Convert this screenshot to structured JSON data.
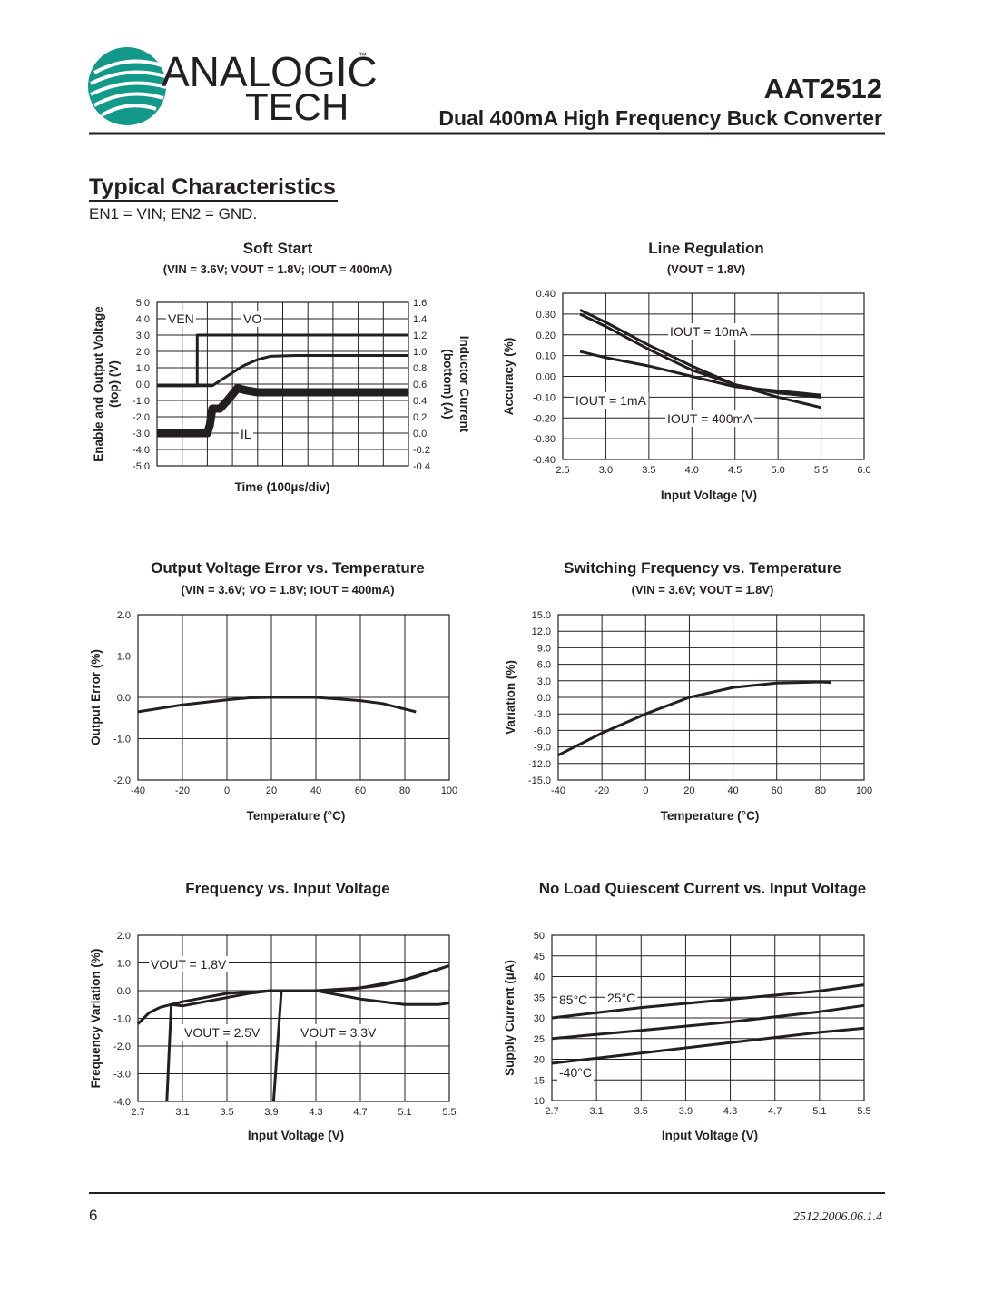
{
  "header": {
    "logo_top": "ANALOGIC",
    "logo_bottom": "TECH",
    "trademark": "™",
    "part": "AAT2512",
    "product": "Dual 400mA High Frequency Buck Converter"
  },
  "section": {
    "title": "Typical Characteristics",
    "condition": "EN1 = VIN; EN2 = GND."
  },
  "footer": {
    "page": "6",
    "doc": "2512.2006.06.1.4"
  },
  "chart_data": [
    {
      "type": "line",
      "title": "Soft Start",
      "subtitle": "(VIN = 3.6V; VOUT = 1.8V; IOUT = 400mA)",
      "xlabel": "Time (100µs/div)",
      "ylabel": [
        "Enable and Output Voltage",
        "(top) (V)"
      ],
      "y2label": [
        "Inductor Current",
        "(bottom) (A)"
      ],
      "xlim": [
        0,
        10
      ],
      "xticks": [
        0,
        1,
        2,
        3,
        4,
        5,
        6,
        7,
        8,
        9,
        10
      ],
      "ylim": [
        -5,
        5
      ],
      "yticks": [
        {
          "value": 5,
          "label": "5.0"
        },
        {
          "value": 4,
          "label": "4.0"
        },
        {
          "value": 3,
          "label": "3.0"
        },
        {
          "value": 2,
          "label": "2.0"
        },
        {
          "value": 1,
          "label": "1.0"
        },
        {
          "value": 0,
          "label": "0.0"
        },
        {
          "value": -1,
          "label": "-1.0"
        },
        {
          "value": -2,
          "label": "-2.0"
        },
        {
          "value": -3,
          "label": "-3.0"
        },
        {
          "value": -4,
          "label": "-4.0"
        },
        {
          "value": -5,
          "label": "-5.0"
        }
      ],
      "y2lim": [
        -0.4,
        1.6
      ],
      "y2ticks": [
        1.6,
        1.4,
        1.2,
        {
          "value": 1,
          "label": "1.0"
        },
        0.8,
        0.6,
        0.4,
        0.2,
        {
          "value": 0,
          "label": "0.0"
        },
        -0.2,
        -0.4
      ],
      "grid": true,
      "series": [
        {
          "name": "VEN",
          "color": "#231f20",
          "x": [
            0,
            1.6,
            1.6,
            10
          ],
          "values": [
            -0.1,
            -0.1,
            3.0,
            3.0
          ]
        },
        {
          "name": "VO",
          "color": "#231f20",
          "x": [
            0,
            2.2,
            2.8,
            3.4,
            4,
            4.5,
            5.5,
            10
          ],
          "values": [
            -0.1,
            -0.1,
            0.5,
            1.1,
            1.5,
            1.7,
            1.75,
            1.75
          ]
        },
        {
          "name": "IL",
          "color": "#231f20",
          "axis": "y2",
          "x": [
            0,
            2.0,
            2.1,
            2.2,
            2.5,
            2.8,
            3.2,
            3.6,
            4,
            10
          ],
          "values": [
            0,
            0,
            0.1,
            0.3,
            0.3,
            0.4,
            0.55,
            0.52,
            0.5,
            0.5
          ]
        }
      ]
    },
    {
      "type": "line",
      "title": "Line Regulation",
      "subtitle": "(VOUT = 1.8V)",
      "xlabel": "Input Voltage (V)",
      "ylabel": [
        "Accuracy (%)"
      ],
      "xlim": [
        2.5,
        6
      ],
      "xticks": [
        2.5,
        {
          "value": 3,
          "label": "3.0"
        },
        3.5,
        {
          "value": 4,
          "label": "4.0"
        },
        4.5,
        {
          "value": 5,
          "label": "5.0"
        },
        5.5,
        {
          "value": 6,
          "label": "6.0"
        }
      ],
      "ylim": [
        -0.4,
        0.4
      ],
      "yticks": [
        {
          "value": 0.4,
          "label": "0.40"
        },
        {
          "value": 0.3,
          "label": "0.30"
        },
        {
          "value": 0.2,
          "label": "0.20"
        },
        {
          "value": 0.1,
          "label": "0.10"
        },
        {
          "value": 0,
          "label": "0.00"
        },
        {
          "value": -0.1,
          "label": "-0.10"
        },
        {
          "value": -0.2,
          "label": "-0.20"
        },
        {
          "value": -0.3,
          "label": "-0.30"
        },
        {
          "value": -0.4,
          "label": "-0.40"
        }
      ],
      "grid": true,
      "series": [
        {
          "name": "IOUT = 10mA",
          "color": "#231f20",
          "x": [
            2.7,
            3,
            3.5,
            4,
            4.5,
            5,
            5.5
          ],
          "values": [
            0.12,
            0.09,
            0.05,
            0,
            -0.05,
            -0.07,
            -0.09
          ]
        },
        {
          "name": "IOUT = 1mA",
          "color": "#231f20",
          "x": [
            2.7,
            3,
            3.5,
            4,
            4.5,
            5,
            5.5
          ],
          "values": [
            0.32,
            0.26,
            0.15,
            0.05,
            -0.04,
            -0.1,
            -0.15
          ]
        },
        {
          "name": "IOUT = 400mA",
          "color": "#231f20",
          "x": [
            2.7,
            3,
            3.5,
            4,
            4.5,
            5,
            5.5
          ],
          "values": [
            0.3,
            0.24,
            0.13,
            0.03,
            -0.04,
            -0.08,
            -0.1
          ]
        }
      ]
    },
    {
      "type": "line",
      "title": "Output Voltage Error vs. Temperature",
      "subtitle": "(VIN = 3.6V; VO = 1.8V; IOUT = 400mA)",
      "xlabel": "Temperature (°C)",
      "ylabel": [
        "Output Error (%)"
      ],
      "xlim": [
        -40,
        100
      ],
      "xticks": [
        -40,
        -20,
        0,
        20,
        40,
        60,
        80,
        100
      ],
      "ylim": [
        -2,
        2
      ],
      "yticks": [
        {
          "value": 2,
          "label": "2.0"
        },
        {
          "value": 1,
          "label": "1.0"
        },
        {
          "value": 0,
          "label": "0.0"
        },
        {
          "value": -1,
          "label": "-1.0"
        },
        {
          "value": -2,
          "label": "-2.0"
        }
      ],
      "grid": true,
      "series": [
        {
          "name": "Output Error",
          "color": "#231f20",
          "x": [
            -40,
            -20,
            0,
            10,
            20,
            40,
            60,
            70,
            85
          ],
          "values": [
            -0.35,
            -0.18,
            -0.06,
            -0.01,
            0,
            0,
            -0.08,
            -0.15,
            -0.35
          ]
        }
      ]
    },
    {
      "type": "line",
      "title": "Switching Frequency vs. Temperature",
      "subtitle": "(VIN = 3.6V; VOUT = 1.8V)",
      "xlabel": "Temperature (°C)",
      "ylabel": [
        "Variation (%)"
      ],
      "xlim": [
        -40,
        100
      ],
      "xticks": [
        -40,
        -20,
        0,
        20,
        40,
        60,
        80,
        100
      ],
      "ylim": [
        -15,
        15
      ],
      "yticks": [
        {
          "value": 15,
          "label": "15.0"
        },
        {
          "value": 12,
          "label": "12.0"
        },
        {
          "value": 9,
          "label": "9.0"
        },
        {
          "value": 6,
          "label": "6.0"
        },
        {
          "value": 3,
          "label": "3.0"
        },
        {
          "value": 0,
          "label": "0.0"
        },
        {
          "value": -3,
          "label": "-3.0"
        },
        {
          "value": -6,
          "label": "-6.0"
        },
        {
          "value": -9,
          "label": "-9.0"
        },
        {
          "value": -12,
          "label": "-12.0"
        },
        {
          "value": -15,
          "label": "-15.0"
        }
      ],
      "grid": true,
      "series": [
        {
          "name": "Variation",
          "color": "#231f20",
          "x": [
            -40,
            -20,
            0,
            20,
            40,
            60,
            80,
            85
          ],
          "values": [
            -10.5,
            -6.5,
            -3,
            0,
            1.8,
            2.6,
            2.8,
            2.7
          ]
        }
      ]
    },
    {
      "type": "line",
      "title": "Frequency vs. Input Voltage",
      "xlabel": "Input Voltage (V)",
      "ylabel": [
        "Frequency Variation (%)"
      ],
      "xlim": [
        2.7,
        5.5
      ],
      "xticks": [
        2.7,
        3.1,
        3.5,
        3.9,
        4.3,
        4.7,
        5.1,
        5.5
      ],
      "ylim": [
        -4,
        2
      ],
      "yticks": [
        {
          "value": 2,
          "label": "2.0"
        },
        {
          "value": 1,
          "label": "1.0"
        },
        {
          "value": 0,
          "label": "0.0"
        },
        {
          "value": -1,
          "label": "-1.0"
        },
        {
          "value": -2,
          "label": "-2.0"
        },
        {
          "value": -3,
          "label": "-3.0"
        },
        {
          "value": -4,
          "label": "-4.0"
        }
      ],
      "grid": true,
      "series": [
        {
          "name": "VOUT = 1.8V",
          "color": "#231f20",
          "x": [
            2.7,
            2.8,
            2.9,
            3.1,
            3.5,
            3.9,
            4.3,
            4.7,
            5.1,
            5.5
          ],
          "values": [
            -1.2,
            -0.8,
            -0.6,
            -0.4,
            -0.1,
            0,
            0,
            0.1,
            0.4,
            0.9
          ]
        },
        {
          "name": "VOUT = 2.5V",
          "color": "#231f20",
          "x": [
            2.96,
            3,
            3.1,
            3.3,
            3.5,
            3.7,
            3.9,
            4.3,
            4.7,
            5.1,
            5.4,
            5.5
          ],
          "values": [
            -4,
            -0.5,
            -0.55,
            -0.4,
            -0.25,
            -0.1,
            0,
            0,
            -0.3,
            -0.5,
            -0.5,
            -0.45
          ]
        },
        {
          "name": "VOUT = 3.3V",
          "color": "#231f20",
          "x": [
            3.92,
            3.99,
            4.1,
            4.5,
            4.9,
            5.2,
            5.5
          ],
          "values": [
            -4,
            0,
            0,
            0,
            0.2,
            0.5,
            0.9
          ]
        }
      ]
    },
    {
      "type": "line",
      "title": "No Load Quiescent Current vs. Input Voltage",
      "xlabel": "Input Voltage (V)",
      "ylabel": [
        "Supply Current (µA)"
      ],
      "xlim": [
        2.7,
        5.5
      ],
      "xticks": [
        2.7,
        3.1,
        3.5,
        3.9,
        4.3,
        4.7,
        5.1,
        5.5
      ],
      "ylim": [
        10,
        50
      ],
      "yticks": [
        50,
        45,
        40,
        35,
        30,
        25,
        20,
        15,
        10
      ],
      "grid": true,
      "series": [
        {
          "name": "85°C",
          "color": "#231f20",
          "x": [
            2.7,
            3.5,
            4.3,
            5.1,
            5.5
          ],
          "values": [
            30,
            32.5,
            34.5,
            36.5,
            38
          ]
        },
        {
          "name": "25°C",
          "color": "#231f20",
          "x": [
            2.7,
            3.5,
            4.3,
            5.1,
            5.5
          ],
          "values": [
            25,
            27,
            29,
            31.5,
            33
          ]
        },
        {
          "name": "-40°C",
          "color": "#231f20",
          "x": [
            2.7,
            3.5,
            4.3,
            5.1,
            5.5
          ],
          "values": [
            19,
            21.5,
            24,
            26.5,
            27.5
          ]
        }
      ]
    }
  ]
}
